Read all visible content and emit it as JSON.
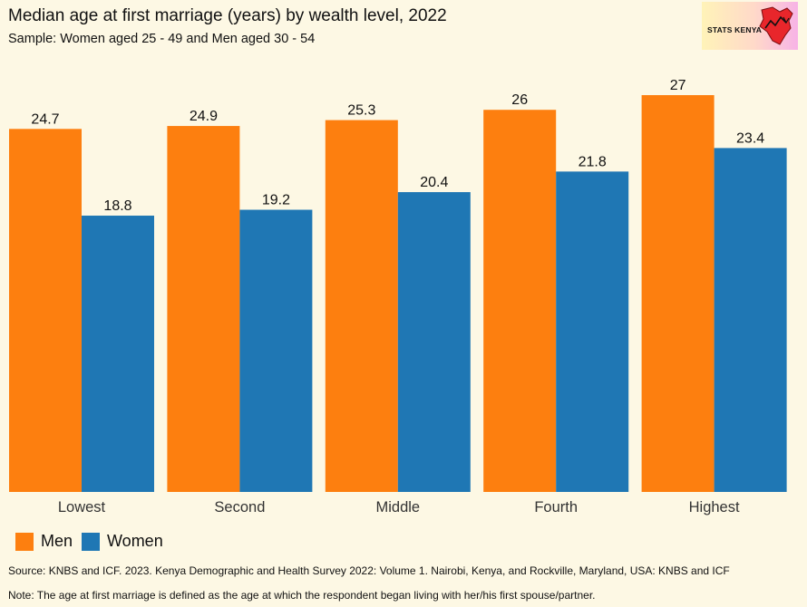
{
  "title": "Median age at first marriage (years) by wealth level, 2022",
  "subtitle": "Sample: Women aged 25 - 49 and Men aged 30 - 54",
  "logo": {
    "text": "STATS KENYA"
  },
  "colors": {
    "men": "#fd7f0f",
    "women": "#1f77b4",
    "background": "#fdf8e4"
  },
  "chart_data": {
    "type": "bar",
    "categories": [
      "Lowest",
      "Second",
      "Middle",
      "Fourth",
      "Highest"
    ],
    "series": [
      {
        "name": "Men",
        "values": [
          24.7,
          24.9,
          25.3,
          26,
          27
        ]
      },
      {
        "name": "Women",
        "values": [
          18.8,
          19.2,
          20.4,
          21.8,
          23.4
        ]
      }
    ],
    "data_labels": [
      [
        "24.7",
        "24.9",
        "25.3",
        "26",
        "27"
      ],
      [
        "18.8",
        "19.2",
        "20.4",
        "21.8",
        "23.4"
      ]
    ],
    "ylim": [
      0,
      27
    ],
    "legend_position": "bottom-left",
    "grid": false
  },
  "legend": [
    {
      "label": "Men"
    },
    {
      "label": "Women"
    }
  ],
  "source": "Source: KNBS and ICF. 2023. Kenya Demographic and Health Survey 2022: Volume 1. Nairobi, Kenya, and Rockville, Maryland, USA: KNBS and ICF",
  "note": "Note: The age at first marriage is defined as the age at which the respondent began living with her/his first spouse/partner."
}
